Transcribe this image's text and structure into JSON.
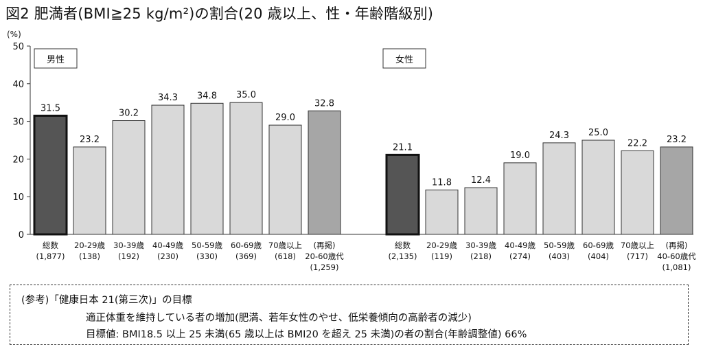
{
  "title": "図2 肥満者(BMI≧25 kg/m²)の割合(20 歳以上、性・年齢階級別)",
  "chart_data": {
    "type": "bar",
    "yunit": "(%)",
    "ylim": [
      0,
      50
    ],
    "yticks": [
      0,
      10,
      20,
      30,
      40,
      50
    ],
    "grid": false,
    "panels": [
      {
        "label": "男性",
        "categories": [
          {
            "lines": [
              "総数",
              "(1,877)"
            ],
            "value": 31.5,
            "value_label": "31.5",
            "style": "total"
          },
          {
            "lines": [
              "20-29歳",
              "(138)"
            ],
            "value": 23.2,
            "value_label": "23.2",
            "style": "age"
          },
          {
            "lines": [
              "30-39歳",
              "(192)"
            ],
            "value": 30.2,
            "value_label": "30.2",
            "style": "age"
          },
          {
            "lines": [
              "40-49歳",
              "(230)"
            ],
            "value": 34.3,
            "value_label": "34.3",
            "style": "age"
          },
          {
            "lines": [
              "50-59歳",
              "(330)"
            ],
            "value": 34.8,
            "value_label": "34.8",
            "style": "age"
          },
          {
            "lines": [
              "60-69歳",
              "(369)"
            ],
            "value": 35.0,
            "value_label": "35.0",
            "style": "age"
          },
          {
            "lines": [
              "70歳以上",
              "(618)"
            ],
            "value": 29.0,
            "value_label": "29.0",
            "style": "age"
          },
          {
            "lines": [
              "(再掲)",
              "20-60歳代",
              "(1,259)"
            ],
            "value": 32.8,
            "value_label": "32.8",
            "style": "reprint"
          }
        ]
      },
      {
        "label": "女性",
        "categories": [
          {
            "lines": [
              "総数",
              "(2,135)"
            ],
            "value": 21.1,
            "value_label": "21.1",
            "style": "total"
          },
          {
            "lines": [
              "20-29歳",
              "(119)"
            ],
            "value": 11.8,
            "value_label": "11.8",
            "style": "age"
          },
          {
            "lines": [
              "30-39歳",
              "(218)"
            ],
            "value": 12.4,
            "value_label": "12.4",
            "style": "age"
          },
          {
            "lines": [
              "40-49歳",
              "(274)"
            ],
            "value": 19.0,
            "value_label": "19.0",
            "style": "age"
          },
          {
            "lines": [
              "50-59歳",
              "(403)"
            ],
            "value": 24.3,
            "value_label": "24.3",
            "style": "age"
          },
          {
            "lines": [
              "60-69歳",
              "(404)"
            ],
            "value": 25.0,
            "value_label": "25.0",
            "style": "age"
          },
          {
            "lines": [
              "70歳以上",
              "(717)"
            ],
            "value": 22.2,
            "value_label": "22.2",
            "style": "age"
          },
          {
            "lines": [
              "(再掲)",
              "40-60歳代",
              "(1,081)"
            ],
            "value": 23.2,
            "value_label": "23.2",
            "style": "reprint"
          }
        ]
      }
    ],
    "colors": {
      "total": "#555555",
      "age": "#d9d9d9",
      "reprint": "#a6a6a6",
      "stroke": "#333333"
    }
  },
  "note": {
    "line1": "(参考)「健康日本 21(第三次)」の目標",
    "line2": "適正体重を維持している者の増加(肥満、若年女性のやせ、低栄養傾向の高齢者の減少)",
    "line3": "目標値: BMI18.5 以上 25 未満(65 歳以上は BMI20 を超え 25 未満)の者の割合(年齢調整値) 66%"
  }
}
